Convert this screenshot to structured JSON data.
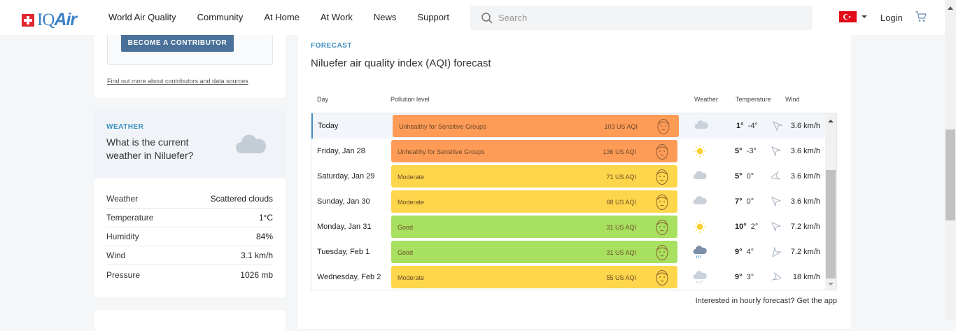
{
  "header": {
    "logo": "IQAir",
    "nav": [
      "World Air Quality",
      "Community",
      "At Home",
      "At Work",
      "News",
      "Support"
    ],
    "search_placeholder": "Search",
    "login": "Login",
    "flag": "Turkey"
  },
  "contributor": {
    "button": "BECOME A CONTRIBUTOR",
    "link": "Find out more about contributors and data sources"
  },
  "weather": {
    "label": "WEATHER",
    "question": "What is the current weather in Niluefer?",
    "rows": [
      {
        "k": "Weather",
        "v": "Scattered clouds"
      },
      {
        "k": "Temperature",
        "v": "1°C"
      },
      {
        "k": "Humidity",
        "v": "84%"
      },
      {
        "k": "Wind",
        "v": "3.1 km/h"
      },
      {
        "k": "Pressure",
        "v": "1026 mb"
      }
    ]
  },
  "forecast": {
    "label": "FORECAST",
    "title": "Niluefer air quality index (AQI) forecast",
    "headers": {
      "day": "Day",
      "pollution": "Pollution level",
      "weather": "Weather",
      "temperature": "Temperature",
      "wind": "Wind"
    },
    "rows": [
      {
        "day": "Today",
        "level": "Unhealthy for Sensitive Groups",
        "aqi": "103 US AQI",
        "color": "#fe9b57",
        "weather": "cloud",
        "hi": "1°",
        "lo": "-4°",
        "wind_dir": "northwest",
        "speed": "3.6 km/h"
      },
      {
        "day": "Friday, Jan 28",
        "level": "Unhealthy for Sensitive Groups",
        "aqi": "136 US AQI",
        "color": "#fe9b57",
        "weather": "sun",
        "hi": "5°",
        "lo": "-3°",
        "wind_dir": "northwest",
        "speed": "3.6 km/h"
      },
      {
        "day": "Saturday, Jan 29",
        "level": "Moderate",
        "aqi": "71 US AQI",
        "color": "#fdd64b",
        "weather": "cloud",
        "hi": "5°",
        "lo": "0°",
        "wind_dir": "west",
        "speed": "3.6 km/h"
      },
      {
        "day": "Sunday, Jan 30",
        "level": "Moderate",
        "aqi": "68 US AQI",
        "color": "#fdd64b",
        "weather": "cloud",
        "hi": "7°",
        "lo": "0°",
        "wind_dir": "northwest",
        "speed": "3.6 km/h"
      },
      {
        "day": "Monday, Jan 31",
        "level": "Good",
        "aqi": "31 US AQI",
        "color": "#a8e05f",
        "weather": "sun",
        "hi": "10°",
        "lo": "2°",
        "wind_dir": "northwest",
        "speed": "7.2 km/h"
      },
      {
        "day": "Tuesday, Feb 1",
        "level": "Good",
        "aqi": "31 US AQI",
        "color": "#a8e05f",
        "weather": "rain",
        "hi": "9°",
        "lo": "4°",
        "wind_dir": "north",
        "speed": "7.2 km/h"
      },
      {
        "day": "Wednesday, Feb 2",
        "level": "Moderate",
        "aqi": "55 US AQI",
        "color": "#fdd64b",
        "weather": "snow",
        "hi": "9°",
        "lo": "3°",
        "wind_dir": "east",
        "speed": "18 km/h"
      }
    ],
    "footer": "Interested in hourly forecast? Get the app"
  }
}
